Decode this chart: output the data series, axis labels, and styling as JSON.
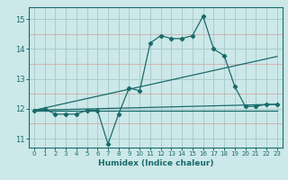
{
  "title": "",
  "xlabel": "Humidex (Indice chaleur)",
  "bg_color": "#cce8e8",
  "grid_color_main": "#aacccc",
  "grid_color_minor": "#e8aaaa",
  "line_color": "#1a6b6b",
  "xlim": [
    -0.5,
    23.5
  ],
  "ylim": [
    10.7,
    15.4
  ],
  "yticks": [
    11,
    12,
    13,
    14,
    15
  ],
  "xticks": [
    0,
    1,
    2,
    3,
    4,
    5,
    6,
    7,
    8,
    9,
    10,
    11,
    12,
    13,
    14,
    15,
    16,
    17,
    18,
    19,
    20,
    21,
    22,
    23
  ],
  "series1_x": [
    0,
    1,
    2,
    3,
    4,
    5,
    6,
    7,
    8,
    9,
    10,
    11,
    12,
    13,
    14,
    15,
    16,
    17,
    18,
    19,
    20,
    21,
    22,
    23
  ],
  "series1_y": [
    11.95,
    12.0,
    11.82,
    11.82,
    11.82,
    11.95,
    11.95,
    10.82,
    11.82,
    12.7,
    12.6,
    14.2,
    14.45,
    14.35,
    14.35,
    14.45,
    15.1,
    14.0,
    13.78,
    12.75,
    12.08,
    12.08,
    12.15,
    12.15
  ],
  "series2_x": [
    0,
    23
  ],
  "series2_y": [
    11.95,
    12.15
  ],
  "series3_x": [
    0,
    23
  ],
  "series3_y": [
    11.95,
    13.75
  ],
  "series4_x": [
    0,
    23
  ],
  "series4_y": [
    11.95,
    11.95
  ]
}
